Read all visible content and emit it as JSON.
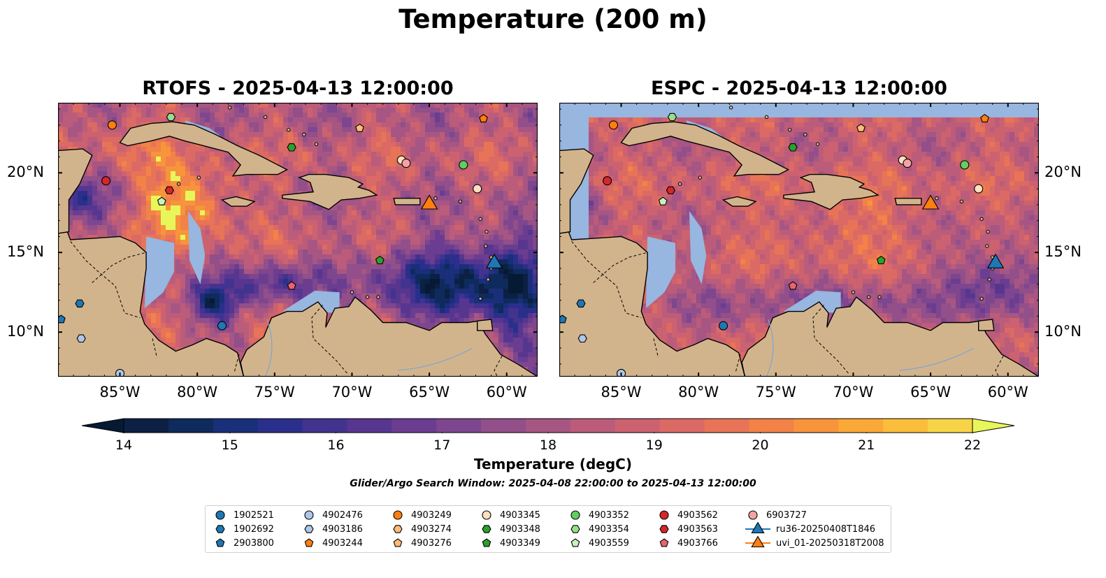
{
  "figure": {
    "title": "Temperature (200 m)",
    "search_window": "Glider/Argo Search Window: 2025-04-08 22:00:00 to 2025-04-13 12:00:00"
  },
  "panels": [
    {
      "title": "RTOFS - 2025-04-13 12:00:00",
      "model": "RTOFS"
    },
    {
      "title": "ESPC - 2025-04-13 12:00:00",
      "model": "ESPC"
    }
  ],
  "map_extent": {
    "lon": [
      -89,
      -58
    ],
    "lat": [
      7.2,
      24.4
    ]
  },
  "axes": {
    "lon_ticks": [
      {
        "value": -85,
        "label": "85°W"
      },
      {
        "value": -80,
        "label": "80°W"
      },
      {
        "value": -75,
        "label": "75°W"
      },
      {
        "value": -70,
        "label": "70°W"
      },
      {
        "value": -65,
        "label": "65°W"
      },
      {
        "value": -60,
        "label": "60°W"
      }
    ],
    "lat_ticks": [
      {
        "value": 20,
        "label": "20°N"
      },
      {
        "value": 15,
        "label": "15°N"
      },
      {
        "value": 10,
        "label": "10°N"
      }
    ]
  },
  "colorbar": {
    "label": "Temperature (degC)",
    "min": 14,
    "max": 22,
    "step": 0.5,
    "extend": "both",
    "ticks": [
      "14",
      "15",
      "16",
      "17",
      "18",
      "19",
      "20",
      "21",
      "22"
    ],
    "colors": [
      "#0b2043",
      "#0f2a5c",
      "#1a2f7a",
      "#2b2f8c",
      "#42338f",
      "#573690",
      "#6b3d90",
      "#7e468e",
      "#924f89",
      "#a75683",
      "#bb5c7a",
      "#cc6270",
      "#db6a65",
      "#e87457",
      "#f28247",
      "#f7943c",
      "#faa838",
      "#fbbe3b",
      "#f7d447"
    ],
    "under_color": "#071a33",
    "over_color": "#e9f65a"
  },
  "colors": {
    "land": "#d2b48c",
    "ocean_mask": "#97b6e0",
    "coast": "#000000"
  },
  "legend": {
    "entries": [
      {
        "label": "1902521",
        "marker": "circle",
        "color": "#1f77b4"
      },
      {
        "label": "1902692",
        "marker": "hexagon",
        "color": "#1f77b4"
      },
      {
        "label": "2903800",
        "marker": "pentagon",
        "color": "#1f77b4"
      },
      {
        "label": "4902476",
        "marker": "circle",
        "color": "#aec7e8"
      },
      {
        "label": "4903186",
        "marker": "hexagon",
        "color": "#aec7e8"
      },
      {
        "label": "4903244",
        "marker": "pentagon",
        "color": "#ff7f0e"
      },
      {
        "label": "4903249",
        "marker": "circle",
        "color": "#ff7f0e"
      },
      {
        "label": "4903274",
        "marker": "hexagon",
        "color": "#ffbb78"
      },
      {
        "label": "4903276",
        "marker": "pentagon",
        "color": "#ffbb78"
      },
      {
        "label": "4903345",
        "marker": "circle",
        "color": "#ffdfbf"
      },
      {
        "label": "4903348",
        "marker": "hexagon",
        "color": "#2ca02c"
      },
      {
        "label": "4903349",
        "marker": "pentagon",
        "color": "#2ca02c"
      },
      {
        "label": "4903352",
        "marker": "circle",
        "color": "#5fcf5f"
      },
      {
        "label": "4903354",
        "marker": "hexagon",
        "color": "#98df8a"
      },
      {
        "label": "4903559",
        "marker": "pentagon",
        "color": "#c8f0c0"
      },
      {
        "label": "4903562",
        "marker": "circle",
        "color": "#d62728"
      },
      {
        "label": "4903563",
        "marker": "hexagon",
        "color": "#d62728"
      },
      {
        "label": "4903766",
        "marker": "pentagon",
        "color": "#e8646a"
      },
      {
        "label": "6903727",
        "marker": "circle",
        "color": "#f4a3a3"
      },
      {
        "label": "ru36-20250408T1846",
        "marker": "triangle",
        "color": "#1f77b4"
      },
      {
        "label": "uvi_01-20250318T2008",
        "marker": "triangle",
        "color": "#ff7f0e"
      }
    ]
  },
  "floats": [
    {
      "id": "4903249",
      "lon": -85.5,
      "lat": 23.0
    },
    {
      "id": "4903354",
      "lon": -81.7,
      "lat": 23.5
    },
    {
      "id": "4903348",
      "lon": -73.9,
      "lat": 21.6
    },
    {
      "id": "4903276",
      "lon": -69.5,
      "lat": 22.8
    },
    {
      "id": "4903244",
      "lon": -61.5,
      "lat": 23.4
    },
    {
      "id": "4903562",
      "lon": -85.9,
      "lat": 19.5
    },
    {
      "id": "4903563",
      "lon": -81.8,
      "lat": 18.9
    },
    {
      "id": "4903559",
      "lon": -82.3,
      "lat": 18.2
    },
    {
      "id": "4903345",
      "lon": -66.8,
      "lat": 20.8
    },
    {
      "id": "6903727",
      "lon": -66.5,
      "lat": 20.6
    },
    {
      "id": "4903352",
      "lon": -62.8,
      "lat": 20.5
    },
    {
      "id": "4903345",
      "lon": -61.9,
      "lat": 19.0
    },
    {
      "id": "4903349",
      "lon": -68.2,
      "lat": 14.5
    },
    {
      "id": "4903766",
      "lon": -73.9,
      "lat": 12.9
    },
    {
      "id": "1902521",
      "lon": -78.4,
      "lat": 10.4
    },
    {
      "id": "1902692",
      "lon": -87.6,
      "lat": 11.8
    },
    {
      "id": "2903800",
      "lon": -88.8,
      "lat": 10.8
    },
    {
      "id": "4903186",
      "lon": -87.5,
      "lat": 9.6
    },
    {
      "id": "4902476",
      "lon": -85.0,
      "lat": 7.4
    }
  ],
  "gliders": [
    {
      "id": "uvi_01-20250318T2008",
      "lon": -65.0,
      "lat": 18.1,
      "color": "#ff7f0e"
    },
    {
      "id": "ru36-20250408T1846",
      "lon": -60.8,
      "lat": 14.4,
      "color": "#1f77b4"
    }
  ]
}
